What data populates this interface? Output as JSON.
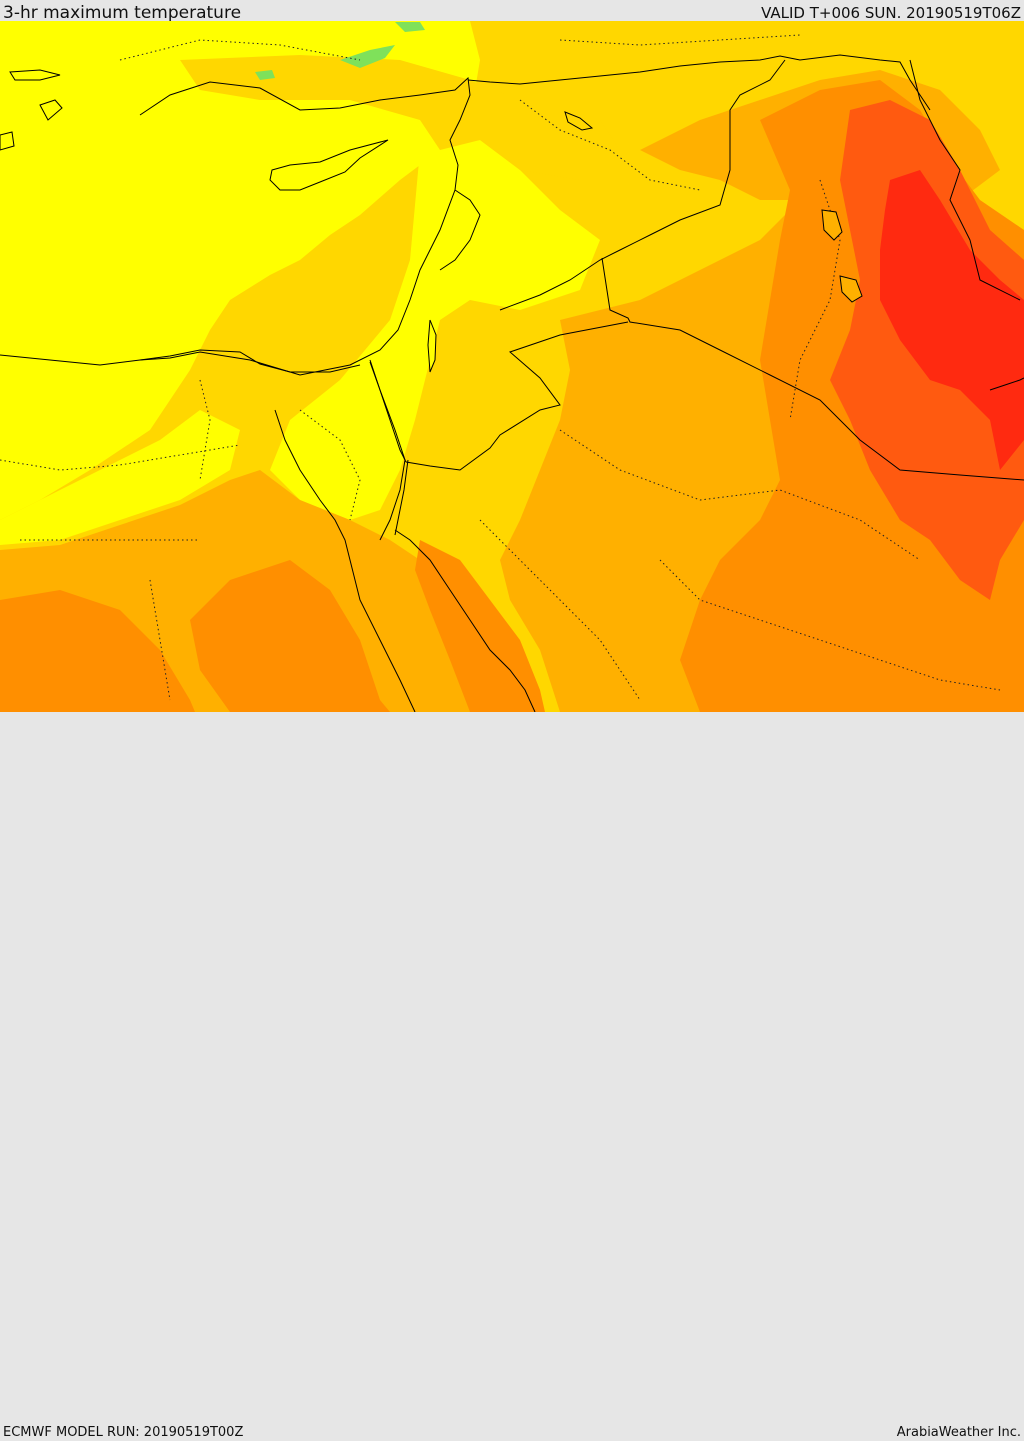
{
  "header": {
    "title": "3-hr maximum temperature",
    "valid": "VALID T+006 SUN. 20190519T06Z"
  },
  "footer": {
    "model_run": "ECMWF MODEL RUN: 20190519T00Z",
    "credit": "ArabiaWeather Inc."
  },
  "palette": {
    "cool": "#7fe15a",
    "yellow": "#ffff00",
    "light_orange": "#ffd700",
    "orange": "#ffb000",
    "dark_orange": "#ff8f00",
    "red_orange": "#ff5a10",
    "red": "#ff2a10",
    "sea_coast": "#000000"
  }
}
